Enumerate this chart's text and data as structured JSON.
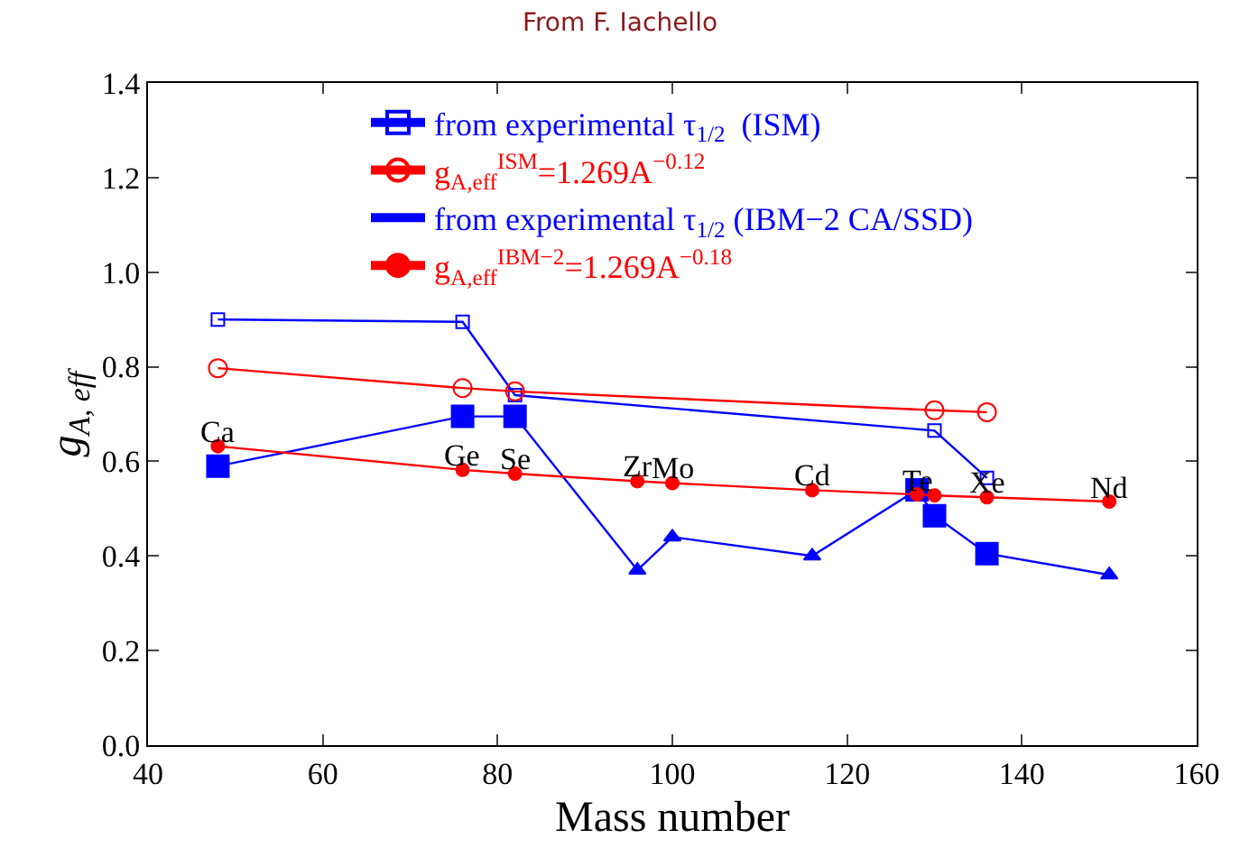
{
  "chart_data": {
    "type": "line",
    "title": "From F. Iachello",
    "xlabel": "Mass number",
    "ylabel": "g$_{A, eff}$",
    "xlim": [
      40,
      160
    ],
    "xticks": [
      40,
      60,
      80,
      100,
      120,
      140,
      160
    ],
    "ylim": [
      0,
      1.4
    ],
    "yticks": [
      {
        "value": 0,
        "label": "0.0"
      },
      {
        "value": 0.2,
        "label": "0.2"
      },
      {
        "value": 0.4,
        "label": "0.4"
      },
      {
        "value": 0.6,
        "label": "0.6"
      },
      {
        "value": 0.8,
        "label": "0.8"
      },
      {
        "value": 1.0,
        "label": "1.0"
      },
      {
        "value": 1.2,
        "label": "1.2"
      },
      {
        "value": 1.4,
        "label": "1.4"
      }
    ],
    "legend": "top",
    "series": [
      {
        "name": "from experimental τ$_{1/2}$  (ISM)",
        "color": "#0000ff",
        "marker": "square-open",
        "x": [
          48,
          76,
          82,
          130,
          136
        ],
        "values": [
          0.9,
          0.895,
          0.74,
          0.665,
          0.565
        ]
      },
      {
        "name": "g$_{A,eff}$$^{ISM}$=1.269A$^{−0.12}$",
        "color": "#ff0000",
        "marker": "circle-open",
        "x": [
          48,
          76,
          82,
          130,
          136
        ],
        "values": [
          0.797,
          0.755,
          0.748,
          0.708,
          0.704
        ]
      },
      {
        "name": "from experimental τ$_{1/2}$ (IBM−2 CA/SSD)",
        "color": "#0000ff",
        "marker": "none",
        "x": [
          48,
          76,
          82,
          96,
          100,
          116,
          128,
          130,
          136,
          150
        ],
        "values": [
          0.59,
          0.695,
          0.695,
          0.37,
          0.44,
          0.4,
          0.54,
          0.485,
          0.405,
          0.36
        ]
      },
      {
        "type": "scatter",
        "color": "#0000ff",
        "marker": "square",
        "x": [
          48,
          76,
          82,
          128,
          130,
          136
        ],
        "values": [
          0.59,
          0.695,
          0.695,
          0.54,
          0.485,
          0.405
        ]
      },
      {
        "type": "scatter",
        "color": "#0000ff",
        "marker": "triangle",
        "x": [
          96,
          100,
          116,
          150
        ],
        "values": [
          0.37,
          0.44,
          0.4,
          0.36
        ]
      },
      {
        "name": "g$_{A,eff}$$^{IBM−2}$=1.269A$^{−0.18}$",
        "color": "#ff0000",
        "marker": "circle",
        "x": [
          48,
          76,
          82,
          96,
          100,
          116,
          128,
          130,
          136,
          150
        ],
        "values": [
          0.632,
          0.582,
          0.574,
          0.558,
          0.554,
          0.539,
          0.53,
          0.528,
          0.524,
          0.515
        ]
      }
    ],
    "annotations": [
      {
        "text": "Ca",
        "x": 48,
        "y": 0.632
      },
      {
        "text": "Ge",
        "x": 76,
        "y": 0.582
      },
      {
        "text": "Se",
        "x": 82,
        "y": 0.574
      },
      {
        "text": "Zr",
        "x": 96,
        "y": 0.558
      },
      {
        "text": "Mo",
        "x": 100,
        "y": 0.554
      },
      {
        "text": "Cd",
        "x": 116,
        "y": 0.539
      },
      {
        "text": "Te",
        "x": 128,
        "y": 0.53
      },
      {
        "text": "Xe",
        "x": 136,
        "y": 0.524
      },
      {
        "text": "Nd",
        "x": 150,
        "y": 0.515
      }
    ]
  }
}
